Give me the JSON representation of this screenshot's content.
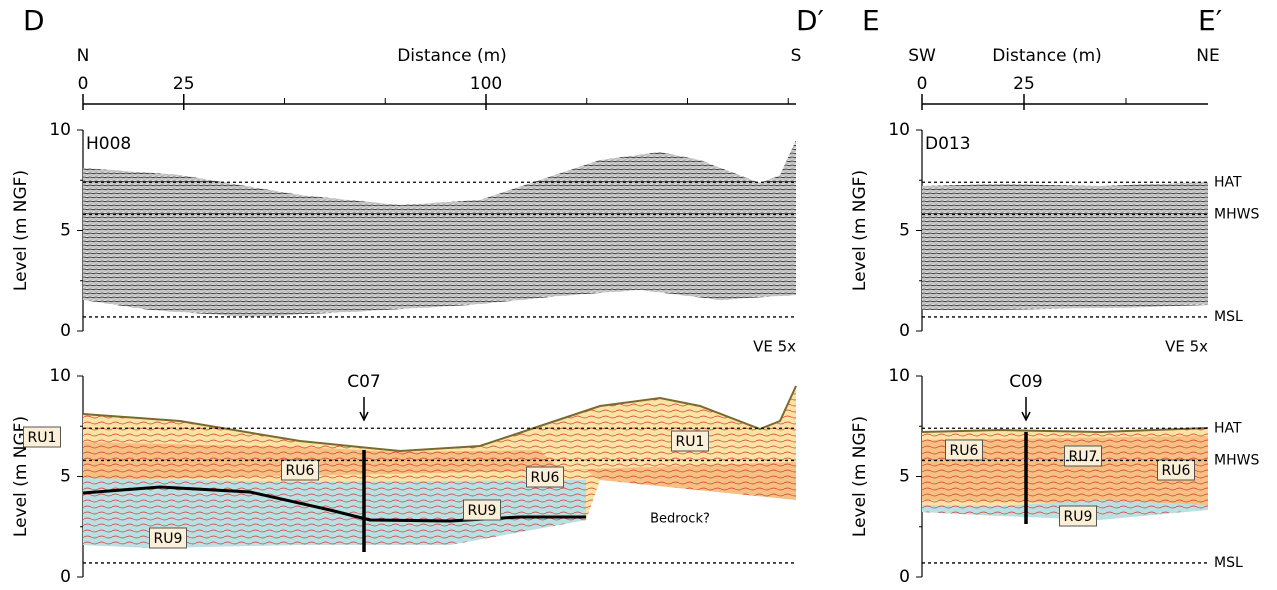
{
  "panels": [
    {
      "id": "D",
      "end_label": "D′",
      "left_dir": "N",
      "right_dir": "S",
      "x_axis_label": "Distance (m)",
      "x_ticks": [
        0,
        25,
        100
      ],
      "y_axis_label": "Level (m NGF)",
      "y_ticks": [
        10,
        5,
        0
      ],
      "profile": "H008",
      "ve": "VE 5x",
      "core": "C07",
      "units": [
        "RU1",
        "RU6",
        "RU9",
        "RU1",
        "RU6",
        "RU9"
      ],
      "note": "Bedrock?"
    },
    {
      "id": "E",
      "end_label": "E′",
      "left_dir": "SW",
      "right_dir": "NE",
      "x_axis_label": "Distance (m)",
      "x_ticks": [
        0,
        25
      ],
      "y_axis_label": "Level (m NGF)",
      "y_ticks": [
        10,
        5,
        0
      ],
      "profile": "D013",
      "ve": "VE 5x",
      "core": "C09",
      "units": [
        "RU6",
        "RU7",
        "RU6",
        "RU9"
      ]
    }
  ],
  "datums": [
    {
      "label": "HAT",
      "level": 7.4
    },
    {
      "label": "MHWS",
      "level": 5.8
    },
    {
      "label": "MSL",
      "level": 0.7
    }
  ]
}
